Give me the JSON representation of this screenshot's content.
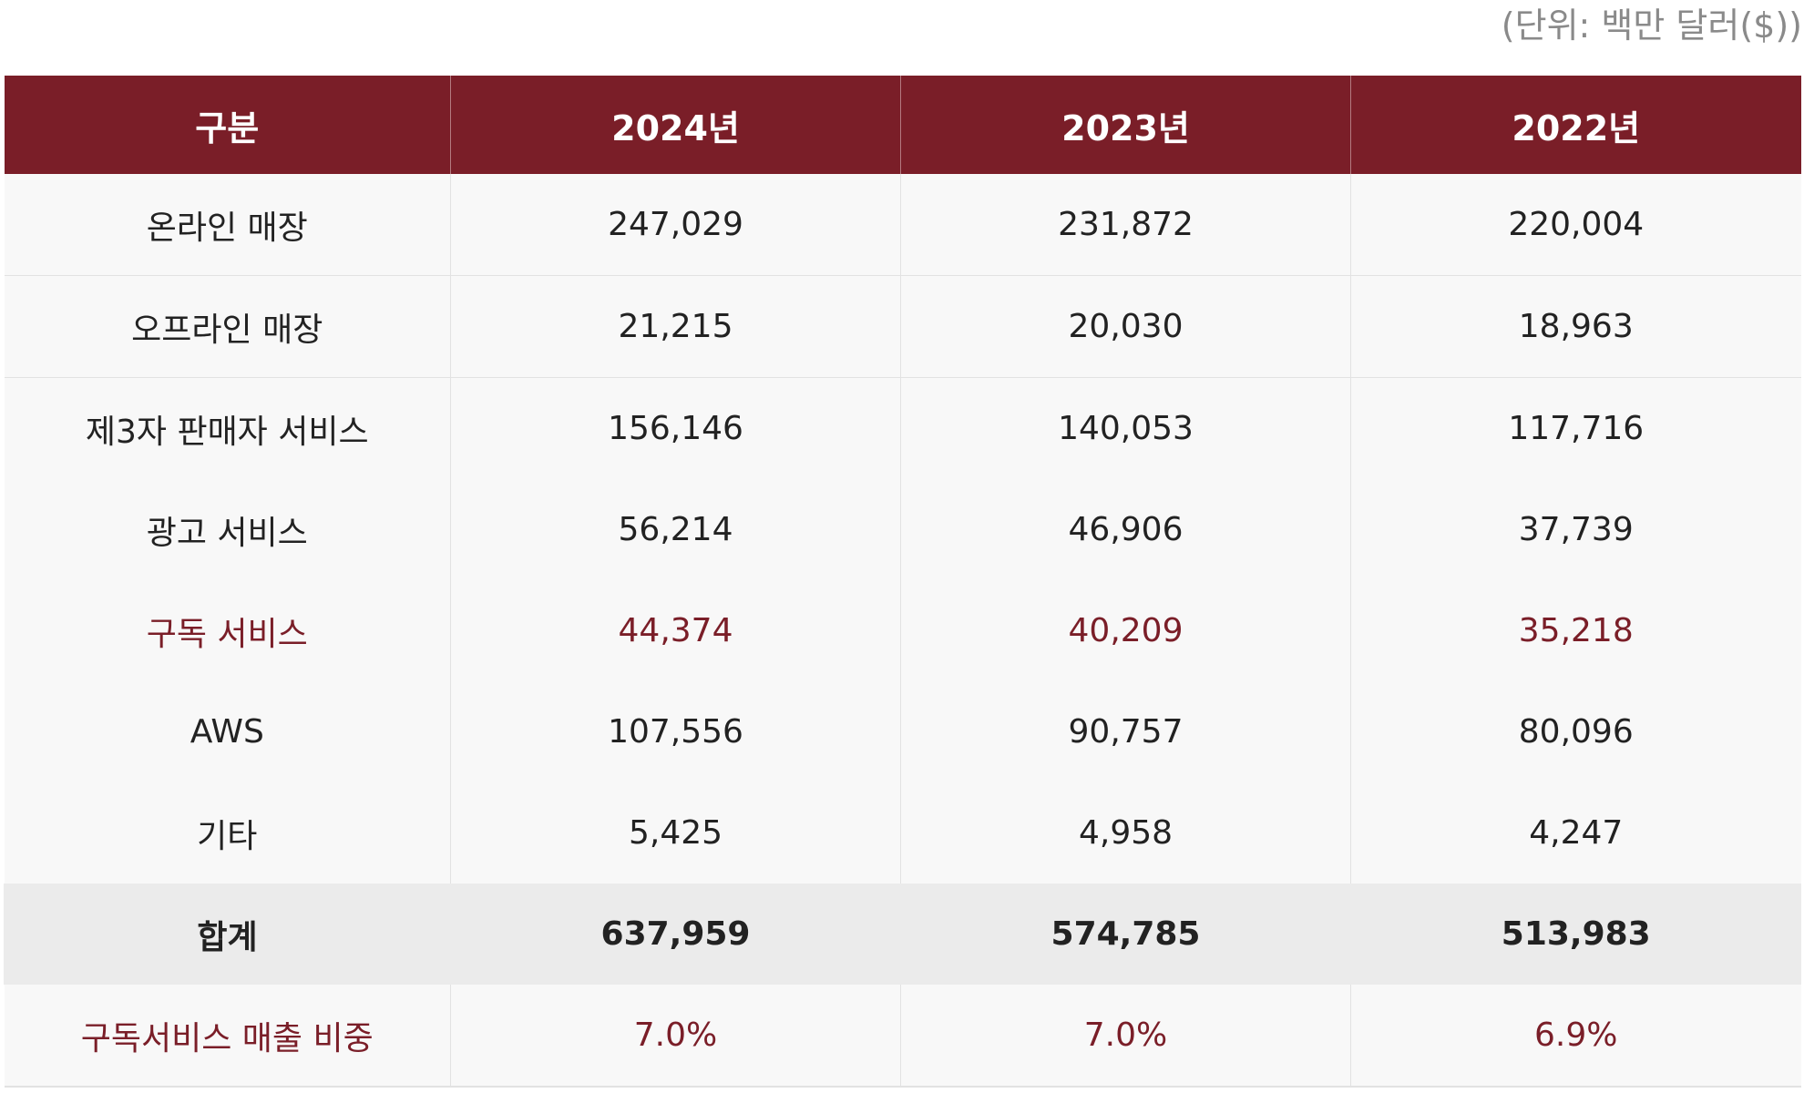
{
  "unit_note": "(단위: 백만 달러($))",
  "table": {
    "headers": [
      "구분",
      "2024년",
      "2023년",
      "2022년"
    ],
    "rows": [
      {
        "label": "온라인 매장",
        "values": [
          "247,029",
          "231,872",
          "220,004"
        ]
      },
      {
        "label": "오프라인 매장",
        "values": [
          "21,215",
          "20,030",
          "18,963"
        ]
      },
      {
        "label": "제3자 판매자 서비스",
        "values": [
          "156,146",
          "140,053",
          "117,716"
        ]
      },
      {
        "label": "광고 서비스",
        "values": [
          "56,214",
          "46,906",
          "37,739"
        ]
      },
      {
        "label": "구독 서비스",
        "values": [
          "44,374",
          "40,209",
          "35,218"
        ]
      },
      {
        "label": "AWS",
        "values": [
          "107,556",
          "90,757",
          "80,096"
        ]
      },
      {
        "label": "기타",
        "values": [
          "5,425",
          "4,958",
          "4,247"
        ]
      },
      {
        "label": "합계",
        "values": [
          "637,959",
          "574,785",
          "513,983"
        ]
      },
      {
        "label": "구독서비스 매출 비중",
        "values": [
          "7.0%",
          "7.0%",
          "6.9%"
        ]
      }
    ]
  },
  "colors": {
    "header_bg": "#7a1e28",
    "highlight_text": "#7a1e28",
    "row_bg": "#f8f8f8",
    "total_bg": "#ebebeb",
    "unit_note_text": "#8a8a8a"
  }
}
